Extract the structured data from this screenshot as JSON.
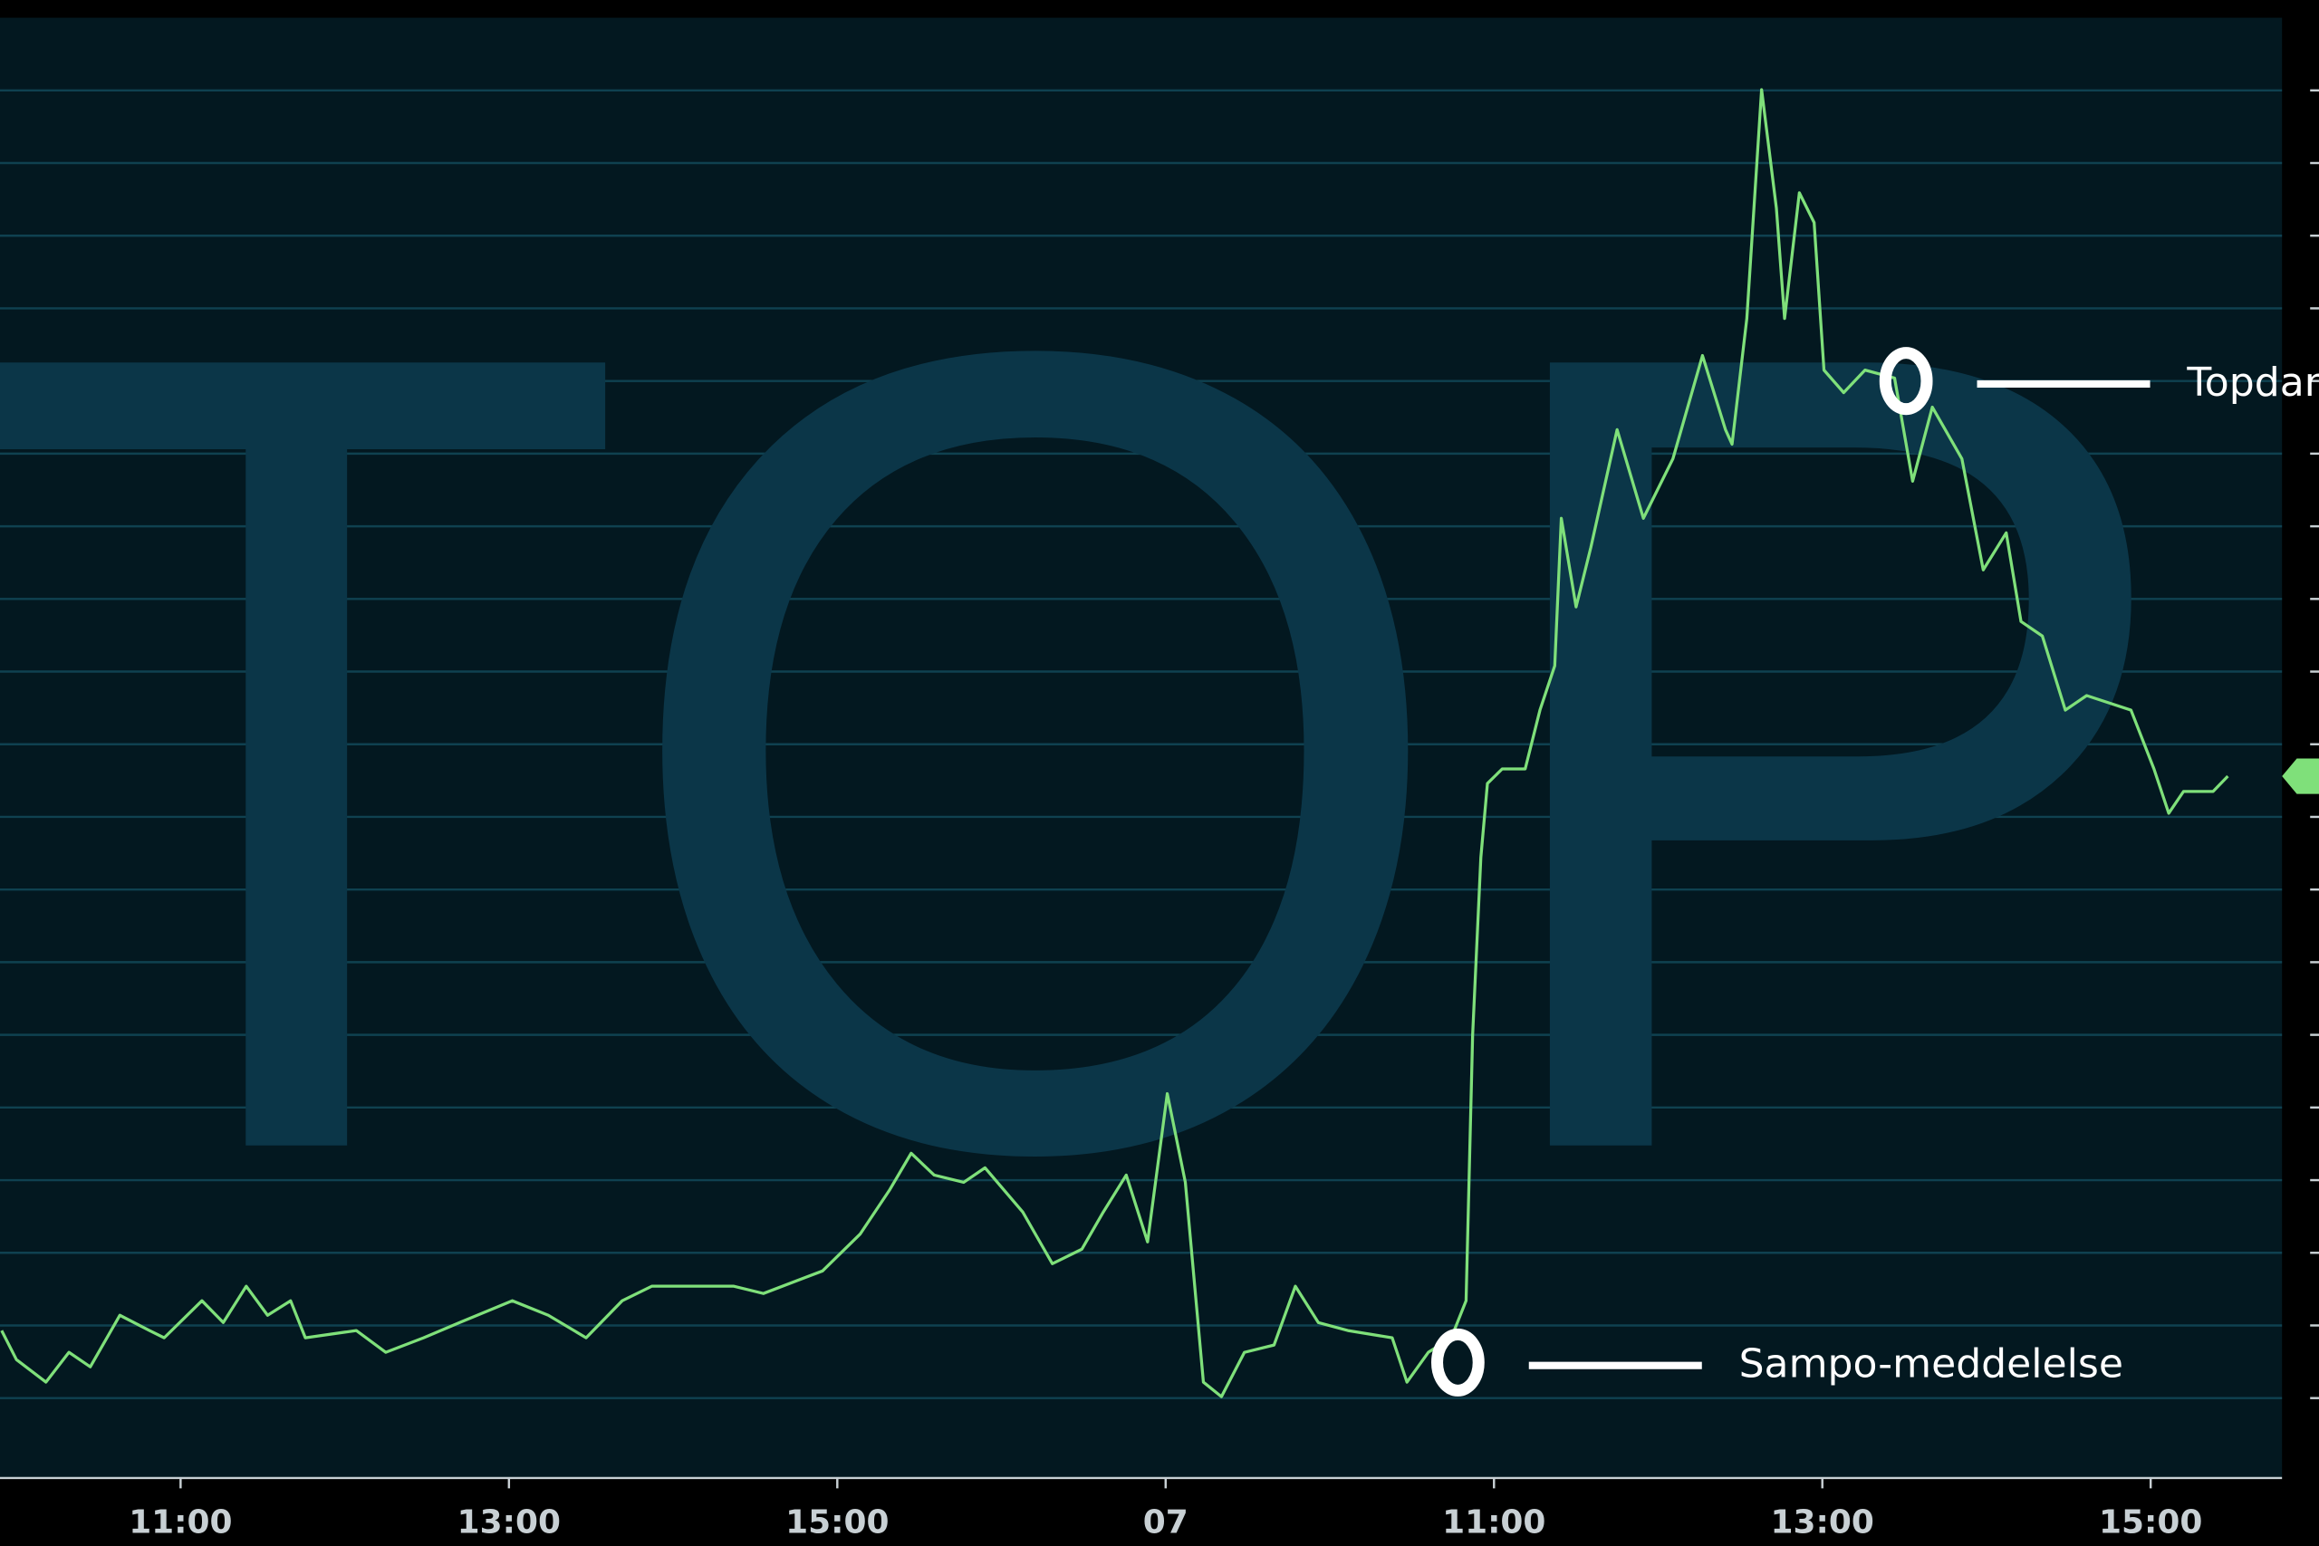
{
  "chart_data": {
    "type": "line",
    "watermark": "TOP",
    "x": [
      0.91,
      1.0,
      1.18,
      1.32,
      1.45,
      1.63,
      1.81,
      1.9,
      2.13,
      2.26,
      2.4,
      2.53,
      2.67,
      2.76,
      3.07,
      3.25,
      3.48,
      3.7,
      4.02,
      4.24,
      4.47,
      4.69,
      4.87,
      5.37,
      5.55,
      5.91,
      6.14,
      6.32,
      6.45,
      6.59,
      6.77,
      6.9,
      7.13,
      7.31,
      7.49,
      7.62,
      7.76,
      7.89,
      8.01,
      8.12,
      8.23,
      8.34,
      8.48,
      8.66,
      8.79,
      8.93,
      9.11,
      9.38,
      9.47,
      9.6,
      9.74,
      9.83,
      9.87,
      9.92,
      9.96,
      10.05,
      10.19,
      10.28,
      10.37,
      10.41,
      10.5,
      10.59,
      10.75,
      10.91,
      11.09,
      11.27,
      11.41,
      11.45,
      11.54,
      11.63,
      11.72,
      11.77,
      11.86,
      11.95,
      12.01,
      12.13,
      12.26,
      12.44,
      12.55,
      12.67,
      12.85,
      12.98,
      13.12,
      13.21,
      13.34,
      13.48,
      13.61,
      13.88,
      14.02,
      14.11,
      14.2,
      14.38,
      14.47
    ],
    "series": [
      {
        "color": "#7fe07a",
        "values": [
          0.93,
          0.53,
          0.22,
          0.63,
          0.43,
          1.14,
          0.93,
          0.83,
          1.34,
          1.04,
          1.54,
          1.14,
          1.34,
          0.83,
          0.93,
          0.63,
          0.83,
          1.04,
          1.34,
          1.14,
          0.83,
          1.34,
          1.54,
          1.54,
          1.44,
          1.75,
          2.26,
          2.87,
          3.37,
          3.07,
          2.97,
          3.17,
          2.56,
          1.85,
          2.05,
          2.56,
          3.07,
          2.15,
          4.19,
          2.97,
          0.22,
          0.02,
          0.63,
          0.73,
          1.54,
          1.04,
          0.93,
          0.83,
          0.22,
          0.63,
          0.83,
          1.34,
          5.0,
          7.44,
          8.46,
          8.66,
          8.66,
          9.47,
          10.08,
          12.11,
          10.89,
          11.71,
          13.33,
          12.11,
          12.93,
          14.35,
          13.33,
          13.13,
          14.86,
          18.01,
          16.38,
          14.86,
          16.59,
          16.18,
          14.15,
          13.84,
          14.15,
          14.04,
          12.62,
          13.64,
          12.93,
          11.4,
          11.91,
          10.69,
          10.49,
          9.47,
          9.67,
          9.47,
          8.66,
          8.05,
          8.35,
          8.35,
          8.56
        ]
      }
    ],
    "xlim": [
      0.9,
      14.8
    ],
    "xticks": [
      {
        "value": 2,
        "label": "11:00"
      },
      {
        "value": 4,
        "label": "13:00"
      },
      {
        "value": 6,
        "label": "15:00"
      },
      {
        "value": 8,
        "label": "07"
      },
      {
        "value": 10,
        "label": "11:00"
      },
      {
        "value": 12,
        "label": "13:00"
      },
      {
        "value": 14,
        "label": "15:00"
      }
    ],
    "ylim": [
      -1.1,
      19
    ],
    "yticks": [
      0,
      1,
      2,
      3,
      4,
      5,
      6,
      7,
      8,
      9,
      10,
      11,
      12,
      13,
      14,
      15,
      16,
      17,
      18
    ],
    "grid": true,
    "annotations": [
      {
        "text": "Sampo-meddelelse",
        "x": 9.78,
        "y": 0.49
      },
      {
        "text": "Topdan",
        "x": 12.51,
        "y": 14.0
      }
    ]
  }
}
